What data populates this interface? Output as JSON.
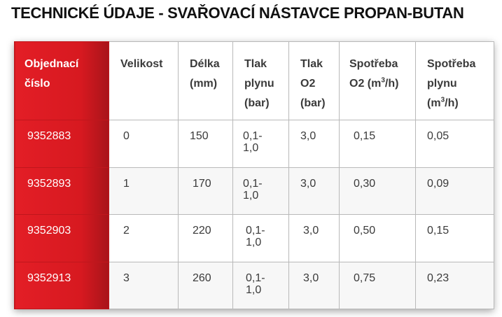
{
  "title": "TECHNICKÉ ÚDAJE - SVAŘOVACÍ NÁSTAVCE PROPAN-BUTAN",
  "colors": {
    "accent": "#e31e26",
    "header_text": "#ffffff",
    "border": "#b9b9b9"
  },
  "table": {
    "headers": [
      {
        "label": "Objednací číslo"
      },
      {
        "label": "Velikost"
      },
      {
        "label": "Délka (mm)"
      },
      {
        "label": "Tlak plynu (bar)"
      },
      {
        "label": "Tlak O2 (bar)"
      },
      {
        "label_pre": "Spotřeba O2 (m",
        "sup": "3",
        "label_post": "/h)"
      },
      {
        "label_pre": "Spotřeba plynu (m",
        "sup": "3",
        "label_post": "/h)"
      }
    ],
    "rows": [
      {
        "order_no": "9352883",
        "size": "0",
        "length": "150",
        "gas_pressure": "0,1-\n1,0",
        "o2_pressure": "3,0",
        "o2_consumption": "0,15",
        "gas_consumption": "0,05"
      },
      {
        "order_no": "9352893",
        "size": "1",
        "length": "170",
        "gas_pressure": "0,1-\n1,0",
        "o2_pressure": "3,0",
        "o2_consumption": "0,30",
        "gas_consumption": "0,09"
      },
      {
        "order_no": "9352903",
        "size": "2",
        "length": "220",
        "gas_pressure": "0,1-\n1,0",
        "o2_pressure": "3,0",
        "o2_consumption": "0,50",
        "gas_consumption": "0,15"
      },
      {
        "order_no": "9352913",
        "size": "3",
        "length": "260",
        "gas_pressure": "0,1-\n1,0",
        "o2_pressure": "3,0",
        "o2_consumption": "0,75",
        "gas_consumption": "0,23"
      }
    ]
  }
}
